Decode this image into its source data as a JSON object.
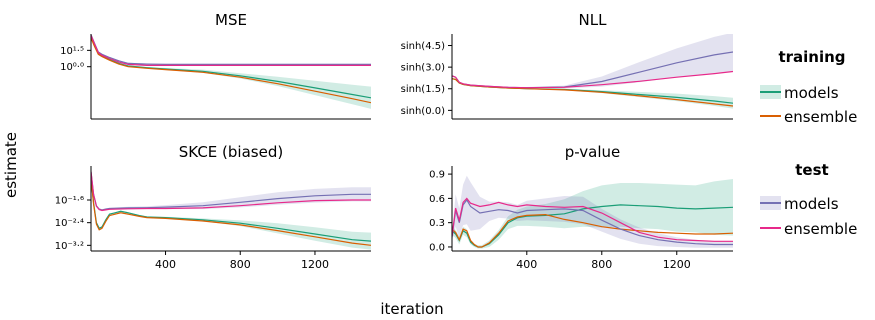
{
  "figure": {
    "ylabel": "estimate",
    "xlabel": "iteration"
  },
  "legend": {
    "training_title": "training",
    "test_title": "test",
    "items": [
      "models",
      "ensemble"
    ]
  },
  "colors": {
    "train_models": "#1b9e77",
    "train_ensemble": "#d95f02",
    "test_models": "#7570b3",
    "test_ensemble": "#e7298a"
  },
  "chart_data": [
    {
      "type": "line",
      "title": "MSE",
      "yscale": "log10",
      "yticks": [
        {
          "v": 1.0,
          "label": "10⁰·⁰"
        },
        {
          "v": 1.5,
          "label": "10¹·⁵"
        }
      ],
      "ylim": [
        -0.6,
        2.0
      ],
      "xlim": [
        1,
        1500
      ],
      "show_xticks": false,
      "series": [
        {
          "key": "train_models",
          "x": [
            1,
            20,
            40,
            60,
            100,
            150,
            200,
            300,
            400,
            600,
            800,
            1000,
            1200,
            1400,
            1500
          ],
          "y": [
            1.9,
            1.65,
            1.4,
            1.33,
            1.22,
            1.1,
            1.02,
            0.97,
            0.93,
            0.86,
            0.72,
            0.55,
            0.35,
            0.15,
            0.05
          ],
          "band": [
            0.02,
            0.02,
            0.02,
            0.02,
            0.02,
            0.02,
            0.02,
            0.02,
            0.03,
            0.05,
            0.08,
            0.14,
            0.22,
            0.3,
            0.34
          ]
        },
        {
          "key": "train_ensemble",
          "x": [
            1,
            20,
            40,
            60,
            100,
            150,
            200,
            300,
            400,
            600,
            800,
            1000,
            1200,
            1400,
            1500
          ],
          "y": [
            1.88,
            1.62,
            1.38,
            1.31,
            1.2,
            1.08,
            1.0,
            0.95,
            0.91,
            0.83,
            0.68,
            0.48,
            0.25,
            0.02,
            -0.1
          ]
        },
        {
          "key": "test_models",
          "x": [
            1,
            20,
            40,
            60,
            100,
            150,
            200,
            300,
            400,
            600,
            800,
            1000,
            1200,
            1400,
            1500
          ],
          "y": [
            1.98,
            1.72,
            1.45,
            1.38,
            1.28,
            1.18,
            1.1,
            1.08,
            1.07,
            1.07,
            1.07,
            1.07,
            1.07,
            1.07,
            1.07
          ],
          "band": [
            0.02,
            0.02,
            0.02,
            0.02,
            0.02,
            0.02,
            0.02,
            0.02,
            0.02,
            0.02,
            0.02,
            0.02,
            0.02,
            0.02,
            0.02
          ]
        },
        {
          "key": "test_ensemble",
          "x": [
            1,
            20,
            40,
            60,
            100,
            150,
            200,
            300,
            400,
            600,
            800,
            1000,
            1200,
            1400,
            1500
          ],
          "y": [
            1.96,
            1.7,
            1.43,
            1.35,
            1.25,
            1.14,
            1.07,
            1.04,
            1.04,
            1.04,
            1.04,
            1.04,
            1.04,
            1.04,
            1.04
          ]
        }
      ]
    },
    {
      "type": "line",
      "title": "NLL",
      "yscale": "asinh",
      "yticks": [
        {
          "v": 0.0,
          "label": "sinh(0.0)"
        },
        {
          "v": 1.5,
          "label": "sinh(1.5)"
        },
        {
          "v": 3.0,
          "label": "sinh(3.0)"
        },
        {
          "v": 4.5,
          "label": "sinh(4.5)"
        }
      ],
      "ylim": [
        -0.6,
        5.3
      ],
      "xlim": [
        1,
        1500
      ],
      "show_xticks": false,
      "series": [
        {
          "key": "train_models",
          "x": [
            1,
            20,
            40,
            60,
            100,
            200,
            300,
            400,
            600,
            800,
            1000,
            1200,
            1400,
            1500
          ],
          "y": [
            2.2,
            2.15,
            1.9,
            1.8,
            1.72,
            1.62,
            1.55,
            1.5,
            1.45,
            1.3,
            1.1,
            0.9,
            0.65,
            0.5
          ],
          "band": [
            0.02,
            0.02,
            0.02,
            0.02,
            0.02,
            0.02,
            0.02,
            0.03,
            0.05,
            0.1,
            0.18,
            0.26,
            0.34,
            0.38
          ]
        },
        {
          "key": "train_ensemble",
          "x": [
            1,
            20,
            40,
            60,
            100,
            200,
            300,
            400,
            600,
            800,
            1000,
            1200,
            1400,
            1500
          ],
          "y": [
            2.2,
            2.15,
            1.9,
            1.8,
            1.72,
            1.62,
            1.55,
            1.5,
            1.42,
            1.25,
            1.0,
            0.75,
            0.45,
            0.3
          ]
        },
        {
          "key": "test_models",
          "x": [
            1,
            20,
            40,
            60,
            100,
            200,
            300,
            400,
            600,
            800,
            1000,
            1200,
            1400,
            1500
          ],
          "y": [
            2.4,
            2.3,
            1.95,
            1.84,
            1.75,
            1.66,
            1.6,
            1.57,
            1.62,
            2.0,
            2.65,
            3.3,
            3.85,
            4.05
          ],
          "band": [
            0.02,
            0.02,
            0.02,
            0.02,
            0.02,
            0.02,
            0.03,
            0.05,
            0.1,
            0.35,
            0.7,
            1.0,
            1.25,
            1.35
          ]
        },
        {
          "key": "test_ensemble",
          "x": [
            1,
            20,
            40,
            60,
            100,
            200,
            300,
            400,
            600,
            800,
            1000,
            1200,
            1400,
            1500
          ],
          "y": [
            2.4,
            2.3,
            1.95,
            1.84,
            1.75,
            1.66,
            1.6,
            1.57,
            1.6,
            1.78,
            2.02,
            2.3,
            2.55,
            2.7
          ]
        }
      ]
    },
    {
      "type": "line",
      "title": "SKCE (biased)",
      "yscale": "log10",
      "yticks": [
        {
          "v": -1.6,
          "label": "10⁻¹·⁶"
        },
        {
          "v": -2.4,
          "label": "10⁻²·⁴"
        },
        {
          "v": -3.2,
          "label": "10⁻³·²"
        }
      ],
      "ylim": [
        -3.4,
        -0.4
      ],
      "xlim": [
        1,
        1500
      ],
      "show_xticks": true,
      "xticks": [
        400,
        800,
        1200
      ],
      "series": [
        {
          "key": "train_models",
          "x": [
            1,
            15,
            30,
            45,
            60,
            80,
            100,
            130,
            160,
            200,
            260,
            300,
            400,
            600,
            800,
            1000,
            1200,
            1400,
            1500
          ],
          "y": [
            -0.8,
            -1.7,
            -2.4,
            -2.6,
            -2.55,
            -2.3,
            -2.1,
            -2.05,
            -2.0,
            -2.05,
            -2.15,
            -2.2,
            -2.22,
            -2.3,
            -2.42,
            -2.6,
            -2.8,
            -3.0,
            -3.05
          ],
          "band": [
            0.02,
            0.02,
            0.02,
            0.02,
            0.02,
            0.02,
            0.02,
            0.02,
            0.02,
            0.02,
            0.02,
            0.02,
            0.03,
            0.05,
            0.1,
            0.18,
            0.24,
            0.28,
            0.3
          ]
        },
        {
          "key": "train_ensemble",
          "x": [
            1,
            15,
            30,
            45,
            60,
            80,
            100,
            130,
            160,
            200,
            260,
            300,
            400,
            600,
            800,
            1000,
            1200,
            1400,
            1500
          ],
          "y": [
            -0.8,
            -1.75,
            -2.45,
            -2.65,
            -2.6,
            -2.35,
            -2.15,
            -2.1,
            -2.05,
            -2.1,
            -2.18,
            -2.22,
            -2.25,
            -2.34,
            -2.48,
            -2.68,
            -2.9,
            -3.12,
            -3.2
          ]
        },
        {
          "key": "test_models",
          "x": [
            1,
            15,
            30,
            45,
            60,
            80,
            100,
            200,
            300,
            400,
            600,
            800,
            1000,
            1200,
            1400,
            1500
          ],
          "y": [
            -0.6,
            -1.4,
            -1.8,
            -1.92,
            -1.95,
            -1.92,
            -1.9,
            -1.88,
            -1.87,
            -1.85,
            -1.8,
            -1.68,
            -1.55,
            -1.45,
            -1.4,
            -1.4
          ],
          "band": [
            0.02,
            0.02,
            0.02,
            0.02,
            0.02,
            0.03,
            0.03,
            0.04,
            0.05,
            0.07,
            0.12,
            0.18,
            0.22,
            0.24,
            0.25,
            0.25
          ]
        },
        {
          "key": "test_ensemble",
          "x": [
            1,
            15,
            30,
            45,
            60,
            80,
            100,
            200,
            300,
            400,
            600,
            800,
            1000,
            1200,
            1400,
            1500
          ],
          "y": [
            -0.6,
            -1.42,
            -1.82,
            -1.94,
            -1.97,
            -1.95,
            -1.93,
            -1.91,
            -1.9,
            -1.9,
            -1.88,
            -1.8,
            -1.7,
            -1.62,
            -1.6,
            -1.6
          ]
        }
      ]
    },
    {
      "type": "line",
      "title": "p-value",
      "yscale": "linear",
      "yticks": [
        {
          "v": 0.0,
          "label": "0.0"
        },
        {
          "v": 0.3,
          "label": "0.3"
        },
        {
          "v": 0.6,
          "label": "0.6"
        },
        {
          "v": 0.9,
          "label": "0.9"
        }
      ],
      "ylim": [
        -0.05,
        1.0
      ],
      "xlim": [
        1,
        1500
      ],
      "show_xticks": true,
      "xticks": [
        400,
        800,
        1200
      ],
      "series": [
        {
          "key": "train_models",
          "x": [
            1,
            20,
            40,
            60,
            80,
            100,
            120,
            140,
            160,
            200,
            250,
            300,
            350,
            400,
            500,
            600,
            700,
            800,
            900,
            1000,
            1100,
            1200,
            1300,
            1400,
            1500
          ],
          "y": [
            0.2,
            0.16,
            0.08,
            0.2,
            0.17,
            0.06,
            0.02,
            0.0,
            0.0,
            0.04,
            0.15,
            0.3,
            0.36,
            0.38,
            0.39,
            0.41,
            0.47,
            0.5,
            0.52,
            0.51,
            0.5,
            0.48,
            0.47,
            0.48,
            0.49
          ],
          "band": [
            0.05,
            0.05,
            0.05,
            0.05,
            0.05,
            0.03,
            0.02,
            0.02,
            0.02,
            0.04,
            0.06,
            0.08,
            0.1,
            0.12,
            0.14,
            0.18,
            0.22,
            0.26,
            0.27,
            0.28,
            0.28,
            0.29,
            0.29,
            0.33,
            0.35
          ]
        },
        {
          "key": "train_ensemble",
          "x": [
            1,
            20,
            40,
            60,
            80,
            100,
            120,
            140,
            160,
            200,
            250,
            300,
            350,
            400,
            500,
            600,
            700,
            800,
            900,
            1000,
            1100,
            1200,
            1300,
            1400,
            1500
          ],
          "y": [
            0.22,
            0.18,
            0.09,
            0.22,
            0.2,
            0.08,
            0.03,
            0.0,
            0.0,
            0.05,
            0.17,
            0.32,
            0.37,
            0.39,
            0.4,
            0.34,
            0.3,
            0.25,
            0.22,
            0.2,
            0.18,
            0.17,
            0.16,
            0.16,
            0.17
          ]
        },
        {
          "key": "test_models",
          "x": [
            1,
            20,
            40,
            60,
            80,
            100,
            150,
            200,
            250,
            300,
            350,
            400,
            500,
            600,
            700,
            800,
            900,
            1000,
            1100,
            1200,
            1300,
            1400,
            1500
          ],
          "y": [
            0.12,
            0.45,
            0.3,
            0.52,
            0.58,
            0.5,
            0.42,
            0.44,
            0.46,
            0.45,
            0.42,
            0.45,
            0.46,
            0.47,
            0.45,
            0.33,
            0.22,
            0.14,
            0.09,
            0.06,
            0.04,
            0.03,
            0.03
          ],
          "band": [
            0.05,
            0.2,
            0.18,
            0.25,
            0.3,
            0.3,
            0.2,
            0.12,
            0.1,
            0.1,
            0.1,
            0.12,
            0.14,
            0.16,
            0.17,
            0.14,
            0.12,
            0.1,
            0.08,
            0.06,
            0.05,
            0.04,
            0.04
          ]
        },
        {
          "key": "test_ensemble",
          "x": [
            1,
            20,
            40,
            60,
            80,
            100,
            150,
            200,
            250,
            300,
            350,
            400,
            500,
            600,
            700,
            800,
            900,
            1000,
            1100,
            1200,
            1300,
            1400,
            1500
          ],
          "y": [
            0.13,
            0.48,
            0.33,
            0.55,
            0.6,
            0.54,
            0.5,
            0.52,
            0.55,
            0.52,
            0.5,
            0.52,
            0.5,
            0.49,
            0.5,
            0.42,
            0.3,
            0.18,
            0.12,
            0.09,
            0.08,
            0.07,
            0.07
          ]
        }
      ]
    }
  ]
}
